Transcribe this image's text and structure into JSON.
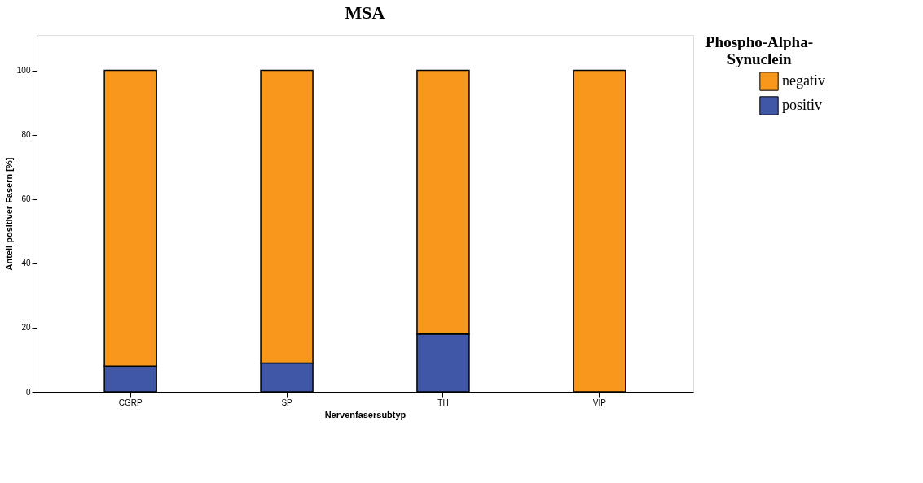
{
  "chart_data": {
    "type": "bar",
    "title": "MSA",
    "xlabel": "Nervenfasersubtyp",
    "ylabel": "Anteil positiver Fasern [%]",
    "legend_title": "Phospho-Alpha-\nSynuclein",
    "categories": [
      "CGRP",
      "SP",
      "TH",
      "VIP"
    ],
    "series": [
      {
        "name": "positiv",
        "color": "#3f57a6",
        "values": [
          8,
          9,
          18,
          0
        ]
      },
      {
        "name": "negativ",
        "color": "#f7981d",
        "values": [
          92,
          91,
          82,
          100
        ]
      }
    ],
    "stacked": true,
    "ylim": [
      0,
      111
    ],
    "yticks": [
      0,
      20,
      40,
      60,
      80,
      100
    ],
    "grid": false,
    "legend": "top right"
  }
}
